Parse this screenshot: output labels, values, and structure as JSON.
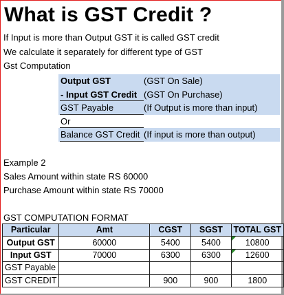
{
  "title": "What is GST Credit ?",
  "intro": [
    "If Input is more than Output GST it is called GST credit",
    "We calculate it separately for different type of GST",
    "Gst Computation"
  ],
  "computation": [
    {
      "label": "Output GST",
      "note": "(GST On Sale)"
    },
    {
      "label": "- Input GST Credit",
      "note": "(GST On  Purchase)"
    },
    {
      "label": "GST Payable",
      "note": "(If Output is more than input)"
    },
    {
      "label": "Or",
      "note": ""
    },
    {
      "label": "Balance GST Credit",
      "note": "(If input is more than output)"
    }
  ],
  "example": {
    "heading": "Example 2",
    "sales": "Sales Amount within state RS 60000",
    "purchase": "Purchase Amount within state RS 70000"
  },
  "format_title": "GST COMPUTATION FORMAT",
  "table": {
    "headers": [
      "Particular",
      "Amt",
      "CGST",
      "SGST",
      "TOTAL GST"
    ],
    "rows": [
      [
        "Output GST",
        "60000",
        "5400",
        "5400",
        "10800"
      ],
      [
        "Input GST",
        "70000",
        "6300",
        "6300",
        "12600"
      ],
      [
        "GST Payable",
        "",
        "",
        "",
        ""
      ],
      [
        "GST CREDIT",
        "",
        "900",
        "900",
        "1800"
      ]
    ]
  }
}
